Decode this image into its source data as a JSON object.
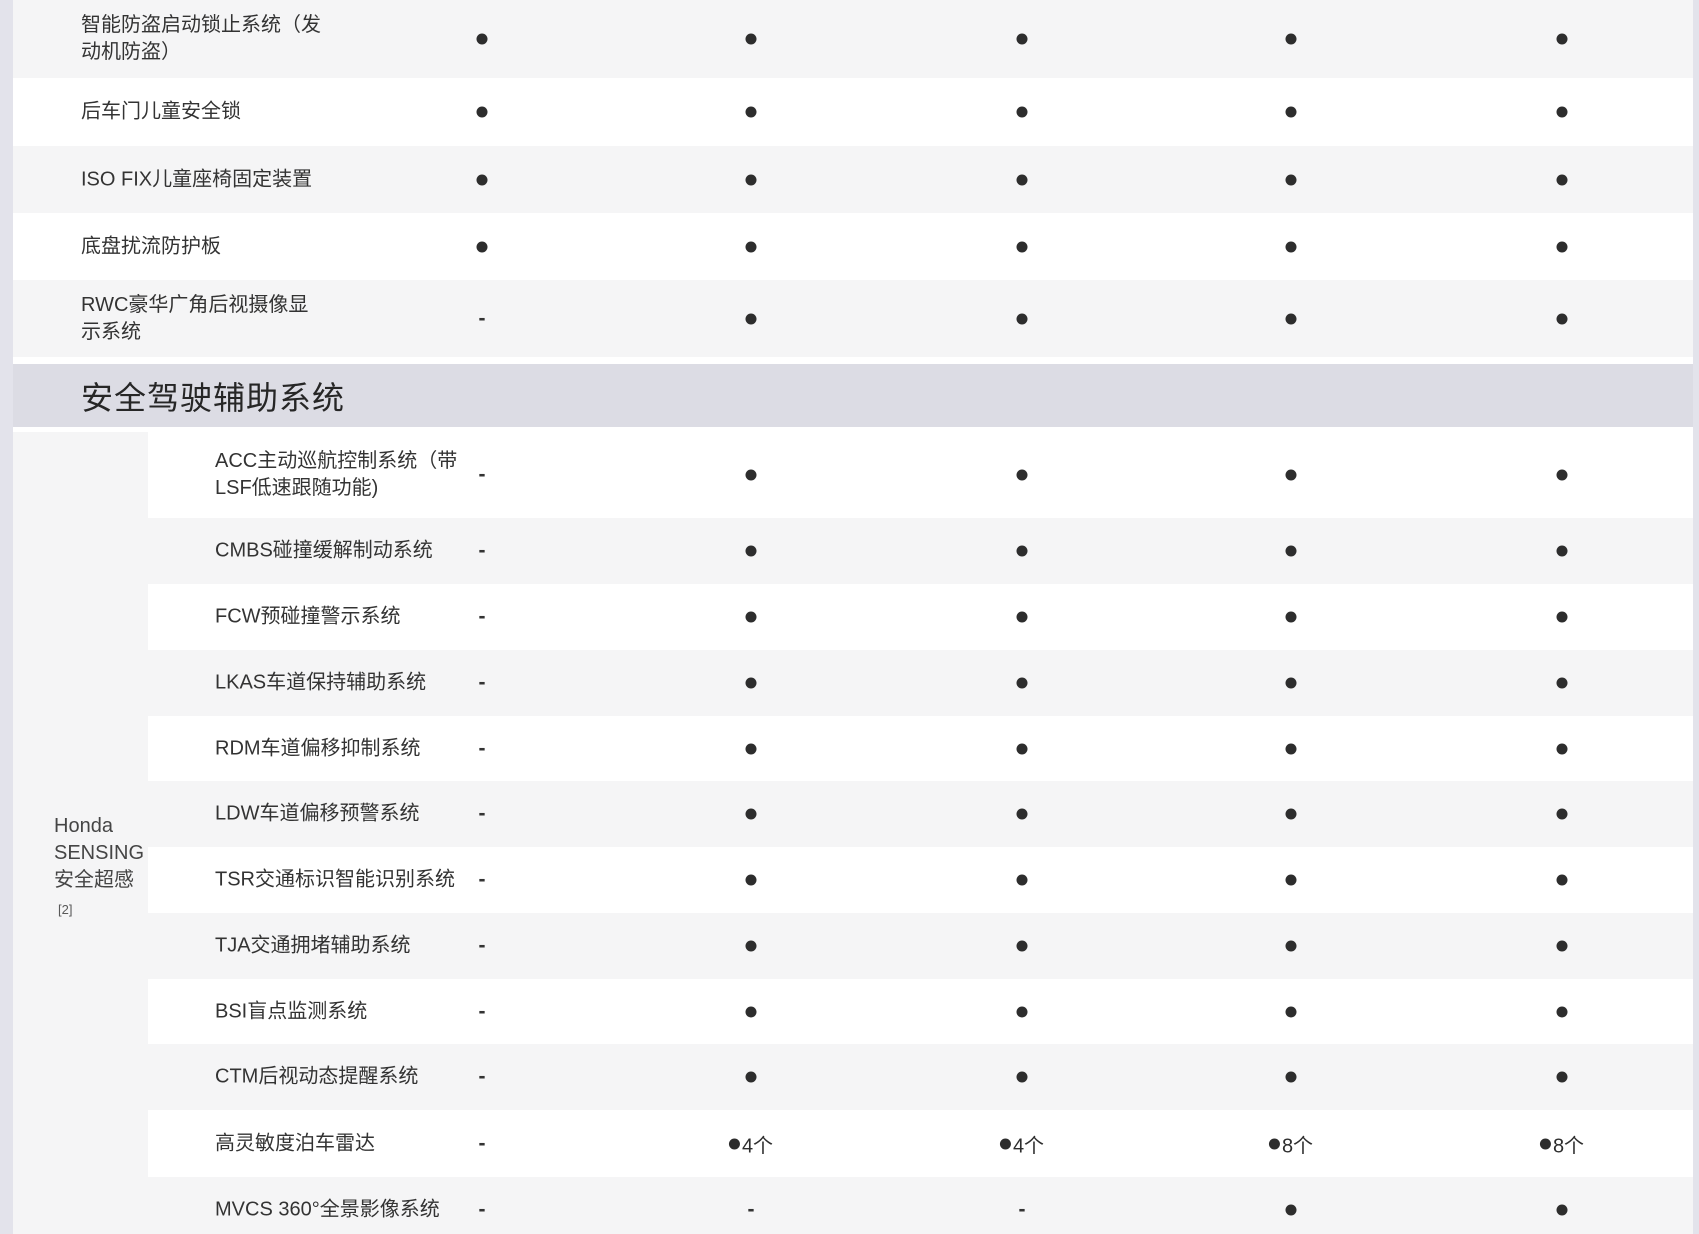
{
  "colors": {
    "page_margin": "#e3e3eb",
    "section_band": "#dcdce4",
    "stripe_gray": "#f5f5f6",
    "stripe_white": "#ffffff",
    "text": "#333333",
    "dot": "#2d2d2d"
  },
  "features_top": {
    "rows": [
      {
        "name": "智能防盗启动锁止系统（发\n动机防盗）",
        "values": [
          "●",
          "●",
          "●",
          "●",
          "●"
        ]
      },
      {
        "name": "后车门儿童安全锁",
        "values": [
          "●",
          "●",
          "●",
          "●",
          "●"
        ]
      },
      {
        "name": "ISO FIX儿童座椅固定装置",
        "values": [
          "●",
          "●",
          "●",
          "●",
          "●"
        ]
      },
      {
        "name": "底盘扰流防护板",
        "values": [
          "●",
          "●",
          "●",
          "●",
          "●"
        ]
      },
      {
        "name": "RWC豪华广角后视摄像显\n示系统",
        "values": [
          "-",
          "●",
          "●",
          "●",
          "●"
        ]
      }
    ]
  },
  "section_header": {
    "label": "安全驾驶辅助系统"
  },
  "honda_sensing": {
    "group_label_lines": [
      "Honda",
      "SENSING",
      "安全超感"
    ],
    "group_footnote": "[2]",
    "rows": [
      {
        "name": "ACC主动巡航控制系统（带\nLSF低速跟随功能)",
        "values": [
          "-",
          "●",
          "●",
          "●",
          "●"
        ]
      },
      {
        "name": "CMBS碰撞缓解制动系统",
        "values": [
          "-",
          "●",
          "●",
          "●",
          "●"
        ]
      },
      {
        "name": "FCW预碰撞警示系统",
        "values": [
          "-",
          "●",
          "●",
          "●",
          "●"
        ]
      },
      {
        "name": "LKAS车道保持辅助系统",
        "values": [
          "-",
          "●",
          "●",
          "●",
          "●"
        ]
      },
      {
        "name": "RDM车道偏移抑制系统",
        "values": [
          "-",
          "●",
          "●",
          "●",
          "●"
        ]
      },
      {
        "name": "LDW车道偏移预警系统",
        "values": [
          "-",
          "●",
          "●",
          "●",
          "●"
        ]
      },
      {
        "name": "TSR交通标识智能识别系统",
        "values": [
          "-",
          "●",
          "●",
          "●",
          "●"
        ]
      },
      {
        "name": "TJA交通拥堵辅助系统",
        "values": [
          "-",
          "●",
          "●",
          "●",
          "●"
        ]
      },
      {
        "name": "BSI盲点监测系统",
        "values": [
          "-",
          "●",
          "●",
          "●",
          "●"
        ]
      },
      {
        "name": "CTM后视动态提醒系统",
        "values": [
          "-",
          "●",
          "●",
          "●",
          "●"
        ]
      },
      {
        "name": "高灵敏度泊车雷达",
        "values": [
          "-",
          "●4个",
          "●4个",
          "●8个",
          "●8个"
        ]
      },
      {
        "name": "MVCS 360°全景影像系统",
        "values": [
          "-",
          "-",
          "-",
          "●",
          "●"
        ]
      }
    ]
  }
}
